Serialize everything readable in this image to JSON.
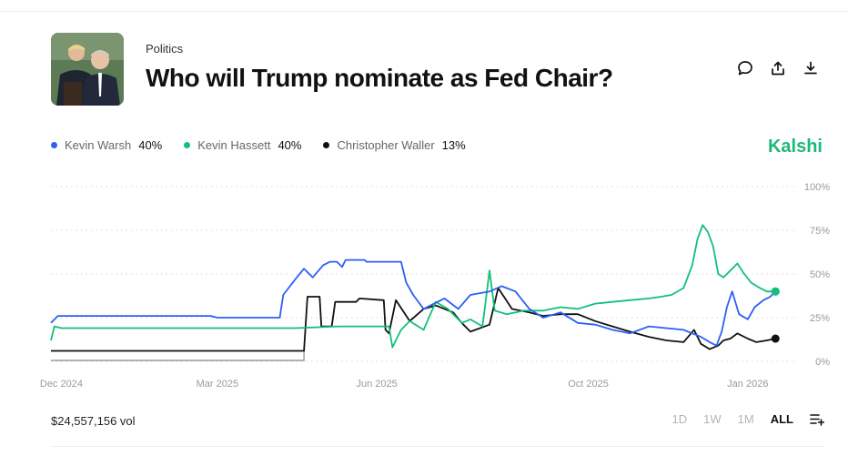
{
  "header": {
    "category": "Politics",
    "title": "Who will Trump nominate as Fed Chair?",
    "actions": [
      "comment-icon",
      "share-icon",
      "download-icon"
    ]
  },
  "brand": "Kalshi",
  "footer": {
    "volume": "$24,557,156 vol",
    "ranges": [
      "1D",
      "1W",
      "1M",
      "ALL"
    ],
    "active_range": "ALL"
  },
  "colors": {
    "warsh": "#2d5ff5",
    "hassett": "#12c079",
    "waller": "#111111",
    "grid": "#d6d6d6",
    "axis_label": "#9a9a9a",
    "brand": "#1eb87b"
  },
  "chart_data": {
    "type": "line",
    "x_start": "2024-11-25",
    "x_end": "2026-01-20",
    "ylim": [
      0,
      100
    ],
    "y_ticks": [
      "0%",
      "25%",
      "50%",
      "75%",
      "100%"
    ],
    "x_ticks": [
      {
        "label": "Dec 2024",
        "date": "2024-12-01"
      },
      {
        "label": "Mar 2025",
        "date": "2025-03-01"
      },
      {
        "label": "Jun 2025",
        "date": "2025-06-01"
      },
      {
        "label": "Oct 2025",
        "date": "2025-10-01"
      },
      {
        "label": "Jan 2026",
        "date": "2026-01-01"
      }
    ],
    "grid": "horizontal-dotted",
    "legend": "top-left",
    "series": [
      {
        "name": "Kevin Warsh",
        "value_label": "40%",
        "color": "#2d5ff5",
        "points": [
          [
            "2024-11-25",
            22
          ],
          [
            "2024-11-29",
            26
          ],
          [
            "2025-02-25",
            26
          ],
          [
            "2025-03-01",
            25
          ],
          [
            "2025-04-06",
            25
          ],
          [
            "2025-04-08",
            38
          ],
          [
            "2025-04-15",
            47
          ],
          [
            "2025-04-20",
            53
          ],
          [
            "2025-04-25",
            48
          ],
          [
            "2025-05-01",
            55
          ],
          [
            "2025-05-05",
            57
          ],
          [
            "2025-05-09",
            57
          ],
          [
            "2025-05-12",
            54
          ],
          [
            "2025-05-14",
            58
          ],
          [
            "2025-05-25",
            58
          ],
          [
            "2025-05-26",
            57
          ],
          [
            "2025-06-10",
            57
          ],
          [
            "2025-06-15",
            57
          ],
          [
            "2025-06-18",
            45
          ],
          [
            "2025-06-22",
            38
          ],
          [
            "2025-06-28",
            30
          ],
          [
            "2025-07-04",
            33
          ],
          [
            "2025-07-10",
            36
          ],
          [
            "2025-07-18",
            30
          ],
          [
            "2025-07-25",
            38
          ],
          [
            "2025-08-05",
            40
          ],
          [
            "2025-08-12",
            43
          ],
          [
            "2025-08-20",
            40
          ],
          [
            "2025-08-28",
            30
          ],
          [
            "2025-09-05",
            25
          ],
          [
            "2025-09-15",
            28
          ],
          [
            "2025-09-25",
            22
          ],
          [
            "2025-10-05",
            21
          ],
          [
            "2025-10-15",
            18
          ],
          [
            "2025-10-25",
            16
          ],
          [
            "2025-11-05",
            20
          ],
          [
            "2025-11-15",
            19
          ],
          [
            "2025-11-25",
            18
          ],
          [
            "2025-12-05",
            14
          ],
          [
            "2025-12-10",
            11
          ],
          [
            "2025-12-14",
            9
          ],
          [
            "2025-12-17",
            17
          ],
          [
            "2025-12-20",
            31
          ],
          [
            "2025-12-23",
            40
          ],
          [
            "2025-12-27",
            27
          ],
          [
            "2026-01-01",
            24
          ],
          [
            "2026-01-05",
            31
          ],
          [
            "2026-01-10",
            35
          ],
          [
            "2026-01-14",
            37
          ],
          [
            "2026-01-17",
            40
          ]
        ]
      },
      {
        "name": "Kevin Hassett",
        "value_label": "40%",
        "color": "#12c079",
        "points": [
          [
            "2024-11-25",
            12
          ],
          [
            "2024-11-27",
            20
          ],
          [
            "2024-12-01",
            19
          ],
          [
            "2025-04-15",
            19
          ],
          [
            "2025-05-10",
            20
          ],
          [
            "2025-06-08",
            20
          ],
          [
            "2025-06-10",
            8
          ],
          [
            "2025-06-15",
            18
          ],
          [
            "2025-06-20",
            23
          ],
          [
            "2025-06-28",
            18
          ],
          [
            "2025-07-05",
            34
          ],
          [
            "2025-07-12",
            30
          ],
          [
            "2025-07-20",
            22
          ],
          [
            "2025-07-25",
            24
          ],
          [
            "2025-08-01",
            20
          ],
          [
            "2025-08-05",
            52
          ],
          [
            "2025-08-08",
            29
          ],
          [
            "2025-08-15",
            27
          ],
          [
            "2025-08-25",
            29
          ],
          [
            "2025-09-05",
            29
          ],
          [
            "2025-09-15",
            31
          ],
          [
            "2025-09-25",
            30
          ],
          [
            "2025-10-05",
            33
          ],
          [
            "2025-10-15",
            34
          ],
          [
            "2025-10-25",
            35
          ],
          [
            "2025-11-05",
            36
          ],
          [
            "2025-11-12",
            37
          ],
          [
            "2025-11-18",
            38
          ],
          [
            "2025-11-25",
            42
          ],
          [
            "2025-11-30",
            55
          ],
          [
            "2025-12-03",
            70
          ],
          [
            "2025-12-06",
            78
          ],
          [
            "2025-12-09",
            74
          ],
          [
            "2025-12-12",
            66
          ],
          [
            "2025-12-15",
            50
          ],
          [
            "2025-12-18",
            48
          ],
          [
            "2025-12-22",
            52
          ],
          [
            "2025-12-26",
            56
          ],
          [
            "2025-12-30",
            50
          ],
          [
            "2026-01-03",
            45
          ],
          [
            "2026-01-08",
            42
          ],
          [
            "2026-01-12",
            40
          ],
          [
            "2026-01-17",
            40
          ]
        ]
      },
      {
        "name": "Christopher Waller",
        "value_label": "13%",
        "color": "#111111",
        "points": [
          [
            "2024-11-25",
            6
          ],
          [
            "2025-04-20",
            6
          ],
          [
            "2025-04-22",
            37
          ],
          [
            "2025-04-29",
            37
          ],
          [
            "2025-04-30",
            20
          ],
          [
            "2025-05-06",
            20
          ],
          [
            "2025-05-08",
            34
          ],
          [
            "2025-05-20",
            34
          ],
          [
            "2025-05-22",
            36
          ],
          [
            "2025-06-05",
            35
          ],
          [
            "2025-06-06",
            18
          ],
          [
            "2025-06-08",
            16
          ],
          [
            "2025-06-12",
            35
          ],
          [
            "2025-06-20",
            23
          ],
          [
            "2025-06-28",
            30
          ],
          [
            "2025-07-05",
            32
          ],
          [
            "2025-07-15",
            28
          ],
          [
            "2025-07-20",
            22
          ],
          [
            "2025-07-25",
            17
          ],
          [
            "2025-08-05",
            21
          ],
          [
            "2025-08-10",
            42
          ],
          [
            "2025-08-18",
            30
          ],
          [
            "2025-08-28",
            28
          ],
          [
            "2025-09-05",
            26
          ],
          [
            "2025-09-15",
            27
          ],
          [
            "2025-09-25",
            27
          ],
          [
            "2025-10-05",
            23
          ],
          [
            "2025-10-15",
            20
          ],
          [
            "2025-10-25",
            17
          ],
          [
            "2025-11-05",
            14
          ],
          [
            "2025-11-15",
            12
          ],
          [
            "2025-11-25",
            11
          ],
          [
            "2025-12-01",
            18
          ],
          [
            "2025-12-05",
            10
          ],
          [
            "2025-12-10",
            7
          ],
          [
            "2025-12-15",
            9
          ],
          [
            "2025-12-18",
            12
          ],
          [
            "2025-12-22",
            13
          ],
          [
            "2025-12-26",
            16
          ],
          [
            "2026-01-01",
            13
          ],
          [
            "2026-01-06",
            11
          ],
          [
            "2026-01-12",
            12
          ],
          [
            "2026-01-17",
            13
          ]
        ]
      }
    ],
    "extra_series_note_color": "#9a9a9a"
  }
}
